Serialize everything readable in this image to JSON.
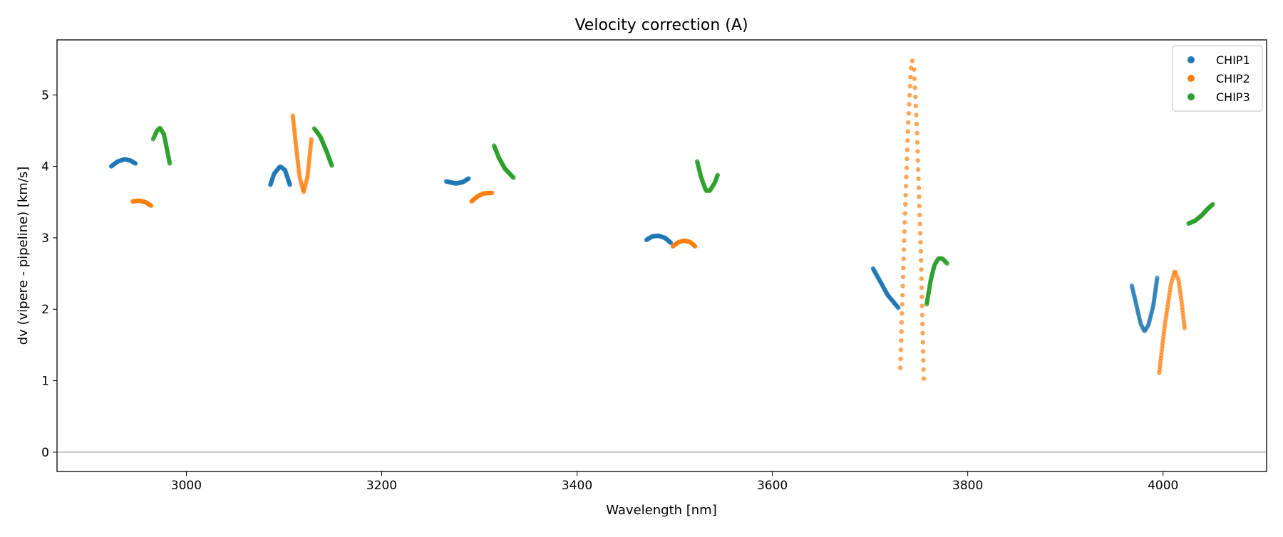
{
  "chart_data": {
    "type": "scatter",
    "title": "Velocity correction (A)",
    "xlabel": "Wavelength [nm]",
    "ylabel": "dv (vipere - pipeline) [km/s]",
    "xlim": [
      2867.6,
      4106
    ],
    "ylim": [
      -0.27,
      5.77
    ],
    "xticks": [
      3000,
      3200,
      3400,
      3600,
      3800,
      4000
    ],
    "yticks": [
      0,
      1,
      2,
      3,
      4,
      5
    ],
    "hline_y": 0,
    "grid": false,
    "legend_position": "top-right",
    "series": [
      {
        "name": "CHIP1",
        "color": "#1f77b4",
        "segments": [
          {
            "n": 45,
            "points": [
              [
                2923,
                4.0
              ],
              [
                2930,
                4.07
              ],
              [
                2937,
                4.1
              ],
              [
                2943,
                4.08
              ],
              [
                2948,
                4.04
              ]
            ]
          },
          {
            "n": 45,
            "points": [
              [
                3086,
                3.74
              ],
              [
                3090,
                3.9
              ],
              [
                3096,
                4.0
              ],
              [
                3101,
                3.95
              ],
              [
                3106,
                3.74
              ]
            ]
          },
          {
            "n": 45,
            "points": [
              [
                3266,
                3.79
              ],
              [
                3276,
                3.76
              ],
              [
                3283,
                3.78
              ],
              [
                3289,
                3.83
              ]
            ]
          },
          {
            "n": 45,
            "points": [
              [
                3471,
                2.97
              ],
              [
                3477,
                3.02
              ],
              [
                3483,
                3.03
              ],
              [
                3490,
                3.0
              ],
              [
                3496,
                2.93
              ]
            ]
          },
          {
            "n": 45,
            "points": [
              [
                3703,
                2.57
              ],
              [
                3710,
                2.4
              ],
              [
                3718,
                2.2
              ],
              [
                3729,
                2.02
              ]
            ]
          },
          {
            "n": 50,
            "points": [
              [
                3968,
                2.33
              ],
              [
                3972,
                2.1
              ],
              [
                3977,
                1.8
              ],
              [
                3981,
                1.69
              ],
              [
                3985,
                1.78
              ],
              [
                3990,
                2.05
              ],
              [
                3994,
                2.44
              ]
            ]
          }
        ]
      },
      {
        "name": "CHIP2",
        "color": "#ff7f0e",
        "segments": [
          {
            "n": 40,
            "points": [
              [
                2945,
                3.51
              ],
              [
                2952,
                3.52
              ],
              [
                2958,
                3.5
              ],
              [
                2964,
                3.45
              ]
            ]
          },
          {
            "n": 55,
            "points": [
              [
                3109,
                4.71
              ],
              [
                3113,
                4.2
              ],
              [
                3116,
                3.85
              ],
              [
                3120,
                3.64
              ],
              [
                3124,
                3.85
              ],
              [
                3128,
                4.38
              ]
            ]
          },
          {
            "n": 40,
            "points": [
              [
                3292,
                3.51
              ],
              [
                3298,
                3.58
              ],
              [
                3304,
                3.62
              ],
              [
                3313,
                3.63
              ]
            ]
          },
          {
            "n": 45,
            "points": [
              [
                3498,
                2.88
              ],
              [
                3504,
                2.94
              ],
              [
                3510,
                2.96
              ],
              [
                3516,
                2.94
              ],
              [
                3521,
                2.88
              ]
            ]
          },
          {
            "n": 70,
            "points": [
              [
                3731,
                1.18
              ],
              [
                3735,
                3.0
              ],
              [
                3739,
                4.6
              ],
              [
                3742,
                5.4
              ],
              [
                3743,
                5.49
              ],
              [
                3745,
                5.4
              ],
              [
                3748,
                4.5
              ],
              [
                3752,
                2.8
              ],
              [
                3755,
                1.03
              ]
            ]
          },
          {
            "n": 55,
            "points": [
              [
                3996,
                1.11
              ],
              [
                4002,
                1.8
              ],
              [
                4008,
                2.35
              ],
              [
                4012,
                2.54
              ],
              [
                4016,
                2.4
              ],
              [
                4019,
                2.1
              ],
              [
                4022,
                1.74
              ]
            ]
          }
        ]
      },
      {
        "name": "CHIP3",
        "color": "#2ca02c",
        "segments": [
          {
            "n": 45,
            "points": [
              [
                2966,
                4.38
              ],
              [
                2970,
                4.5
              ],
              [
                2973,
                4.54
              ],
              [
                2977,
                4.45
              ],
              [
                2980,
                4.25
              ],
              [
                2983,
                4.04
              ]
            ]
          },
          {
            "n": 45,
            "points": [
              [
                3131,
                4.53
              ],
              [
                3137,
                4.42
              ],
              [
                3143,
                4.23
              ],
              [
                3149,
                4.01
              ]
            ]
          },
          {
            "n": 45,
            "points": [
              [
                3315,
                4.29
              ],
              [
                3320,
                4.12
              ],
              [
                3326,
                3.97
              ],
              [
                3335,
                3.84
              ]
            ]
          },
          {
            "n": 45,
            "points": [
              [
                3523,
                4.07
              ],
              [
                3527,
                3.85
              ],
              [
                3532,
                3.66
              ],
              [
                3536,
                3.66
              ],
              [
                3541,
                3.77
              ],
              [
                3544,
                3.88
              ]
            ]
          },
          {
            "n": 50,
            "points": [
              [
                3758,
                2.07
              ],
              [
                3762,
                2.4
              ],
              [
                3766,
                2.62
              ],
              [
                3770,
                2.71
              ],
              [
                3774,
                2.71
              ],
              [
                3779,
                2.64
              ]
            ]
          },
          {
            "n": 45,
            "points": [
              [
                4026,
                3.2
              ],
              [
                4033,
                3.24
              ],
              [
                4040,
                3.32
              ],
              [
                4046,
                3.41
              ],
              [
                4051,
                3.47
              ]
            ]
          }
        ]
      }
    ]
  }
}
